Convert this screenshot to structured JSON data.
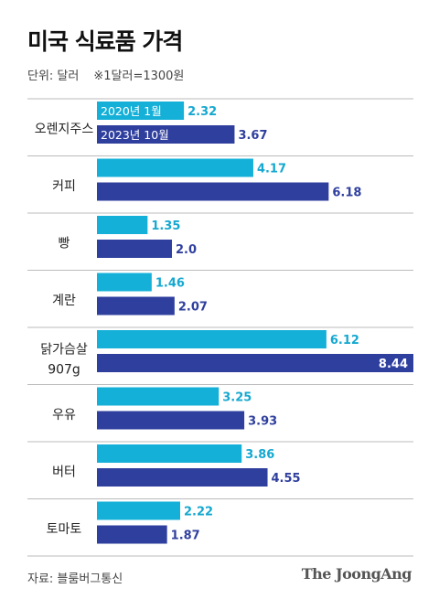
{
  "header": {
    "title": "미국 식료품 가격",
    "unit": "단위: 달러",
    "note": "※1달러=1300원"
  },
  "footer": {
    "source": "자료: 블룸버그통신",
    "brand": "The JoongAng"
  },
  "colors": {
    "series_2020": "#15b0d8",
    "series_2023": "#2f3f9e",
    "label_2020": "#15a8d0",
    "label_2023": "#2f3f9e",
    "divider": "#bbbbbb"
  },
  "chart_data": {
    "type": "bar",
    "orientation": "horizontal",
    "categories": [
      [
        "오렌지주스"
      ],
      [
        "커피"
      ],
      [
        "빵"
      ],
      [
        "계란"
      ],
      [
        "닭가슴살",
        "907g"
      ],
      [
        "우유"
      ],
      [
        "버터"
      ],
      [
        "토마토"
      ]
    ],
    "series": [
      {
        "name": "2020년 1월",
        "values": [
          2.32,
          4.17,
          1.35,
          1.46,
          6.12,
          3.25,
          3.86,
          2.22
        ],
        "labels": [
          "2.32",
          "4.17",
          "1.35",
          "1.46",
          "6.12",
          "3.25",
          "3.86",
          "2.22"
        ]
      },
      {
        "name": "2023년 10월",
        "values": [
          3.67,
          6.18,
          2.0,
          2.07,
          8.44,
          3.93,
          4.55,
          1.87
        ],
        "labels": [
          "3.67",
          "6.18",
          "2.0",
          "2.07",
          "8.44",
          "3.93",
          "4.55",
          "1.87"
        ]
      }
    ],
    "xlim": [
      0,
      8.44
    ],
    "legend": "in-bar, first category"
  }
}
